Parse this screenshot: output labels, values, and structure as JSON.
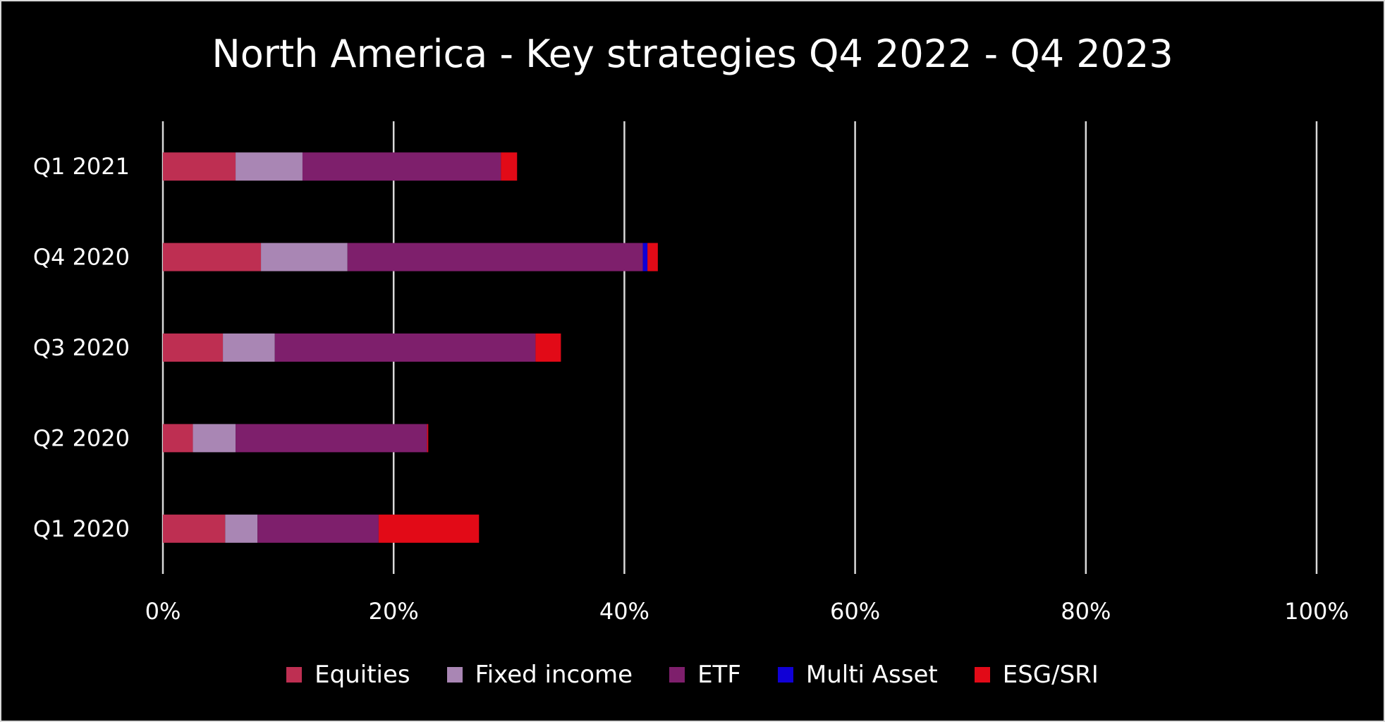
{
  "chart_data": {
    "type": "bar",
    "orientation": "horizontal",
    "stacked": true,
    "title": "North America - Key strategies Q4 2022 - Q4 2023",
    "xlabel": "",
    "ylabel": "",
    "xlim": [
      0,
      100
    ],
    "x_ticks": [
      "0%",
      "20%",
      "40%",
      "60%",
      "80%",
      "100%"
    ],
    "categories": [
      "Q1 2021",
      "Q4 2020",
      "Q3 2020",
      "Q2 2020",
      "Q1 2020"
    ],
    "series": [
      {
        "name": "Equities",
        "color": "#be2f52",
        "values": [
          6.3,
          8.5,
          5.2,
          2.6,
          5.4
        ]
      },
      {
        "name": "Fixed income",
        "color": "#a986b4",
        "values": [
          5.8,
          7.5,
          4.5,
          3.7,
          2.8
        ]
      },
      {
        "name": "ETF",
        "color": "#7e1f6c",
        "values": [
          17.2,
          25.6,
          22.6,
          16.6,
          10.5
        ]
      },
      {
        "name": "Multi Asset",
        "color": "#1000d6",
        "values": [
          0,
          0.4,
          0,
          0,
          0
        ]
      },
      {
        "name": "ESG/SRI",
        "color": "#e20a17",
        "values": [
          1.4,
          0.9,
          2.2,
          0.1,
          8.7
        ]
      }
    ],
    "grid": true,
    "legend_position": "bottom"
  }
}
